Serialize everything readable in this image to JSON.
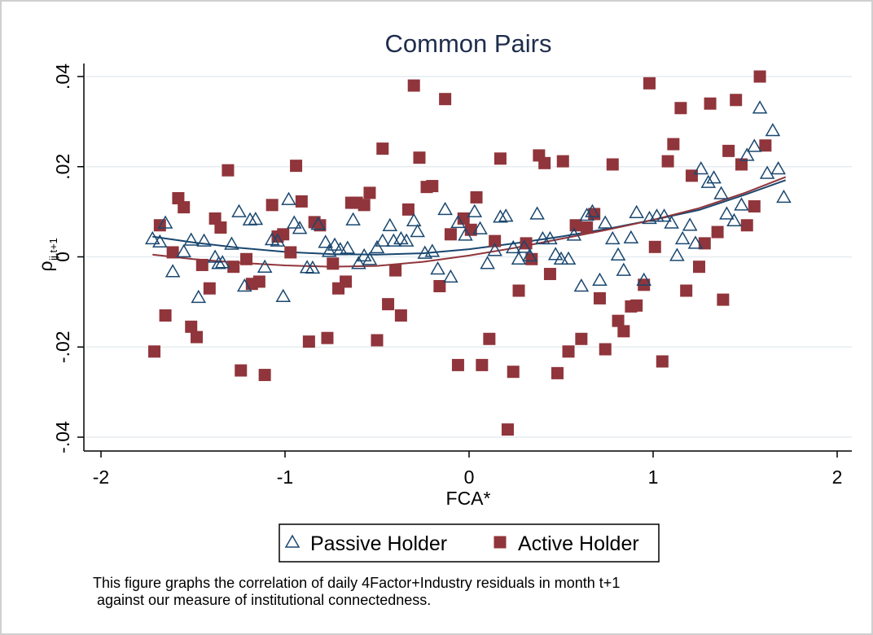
{
  "chart_data": {
    "type": "scatter",
    "title": "Common Pairs",
    "xlabel": "FCA*",
    "ylabel": "ρ",
    "ylabel_subscript": "ij,t+1",
    "xlim": [
      -2,
      2
    ],
    "ylim": [
      -0.04,
      0.04
    ],
    "x_ticks": [
      -2,
      -1,
      0,
      1,
      2
    ],
    "x_tick_labels": [
      "-2",
      "-1",
      "0",
      "1",
      "2"
    ],
    "y_ticks": [
      -0.04,
      -0.02,
      0,
      0.02,
      0.04
    ],
    "y_tick_labels": [
      "-.04",
      "-.02",
      "0",
      ".02",
      ".04"
    ],
    "grid": "horizontal",
    "legend_position": "bottom",
    "colors": {
      "passive": "#1a476f",
      "active": "#90353b",
      "grid": "#e5ecef"
    },
    "series": [
      {
        "name": "Passive Holder",
        "marker": "hollow-triangle",
        "points": [
          [
            -1.72,
            0.004
          ],
          [
            -1.68,
            0.0033
          ],
          [
            -1.65,
            0.0075
          ],
          [
            -1.61,
            -0.0033
          ],
          [
            -1.55,
            0.0011
          ],
          [
            -1.51,
            0.0037
          ],
          [
            -1.47,
            -0.009
          ],
          [
            -1.44,
            0.0035
          ],
          [
            -1.38,
            -0.0001
          ],
          [
            -1.36,
            -0.0015
          ],
          [
            -1.34,
            -0.0013
          ],
          [
            -1.29,
            0.0028
          ],
          [
            -1.25,
            0.01
          ],
          [
            -1.22,
            -0.0065
          ],
          [
            -1.19,
            0.0082
          ],
          [
            -1.16,
            0.0083
          ],
          [
            -1.11,
            -0.0023
          ],
          [
            -1.07,
            0.0038
          ],
          [
            -1.04,
            0.0035
          ],
          [
            -1.01,
            -0.0088
          ],
          [
            -0.98,
            0.0127
          ],
          [
            -0.95,
            0.0075
          ],
          [
            -0.92,
            0.0063
          ],
          [
            -0.88,
            -0.0024
          ],
          [
            -0.85,
            -0.0025
          ],
          [
            -0.82,
            0.0072
          ],
          [
            -0.78,
            0.0032
          ],
          [
            -0.76,
            0.0012
          ],
          [
            -0.73,
            0.0026
          ],
          [
            -0.7,
            0.0016
          ],
          [
            -0.66,
            0.0019
          ],
          [
            -0.63,
            0.0082
          ],
          [
            -0.6,
            -0.0015
          ],
          [
            -0.57,
            0.0002
          ],
          [
            -0.54,
            -0.0006
          ],
          [
            -0.5,
            0.002
          ],
          [
            -0.47,
            0.0035
          ],
          [
            -0.43,
            0.0069
          ],
          [
            -0.41,
            0.0035
          ],
          [
            -0.37,
            0.004
          ],
          [
            -0.34,
            0.0035
          ],
          [
            -0.3,
            0.008
          ],
          [
            -0.28,
            0.0056
          ],
          [
            -0.24,
            0.0008
          ],
          [
            -0.2,
            0.0012
          ],
          [
            -0.17,
            -0.0027
          ],
          [
            -0.13,
            0.0105
          ],
          [
            -0.1,
            -0.0045
          ],
          [
            -0.06,
            0.0076
          ],
          [
            -0.02,
            0.0048
          ],
          [
            0.03,
            0.01
          ],
          [
            0.06,
            0.0062
          ],
          [
            0.1,
            -0.0015
          ],
          [
            0.14,
            0.0014
          ],
          [
            0.17,
            0.0088
          ],
          [
            0.2,
            0.009
          ],
          [
            0.24,
            0.002
          ],
          [
            0.27,
            -0.0005
          ],
          [
            0.3,
            0.0021
          ],
          [
            0.33,
            0.0002
          ],
          [
            0.37,
            0.0095
          ],
          [
            0.4,
            0.004
          ],
          [
            0.44,
            0.004
          ],
          [
            0.47,
            0.0005
          ],
          [
            0.5,
            -0.0005
          ],
          [
            0.54,
            -0.0005
          ],
          [
            0.57,
            0.0048
          ],
          [
            0.61,
            -0.0065
          ],
          [
            0.64,
            0.0092
          ],
          [
            0.67,
            0.01
          ],
          [
            0.71,
            -0.0052
          ],
          [
            0.74,
            0.0075
          ],
          [
            0.78,
            0.004
          ],
          [
            0.81,
            0.0004
          ],
          [
            0.84,
            -0.003
          ],
          [
            0.88,
            0.0042
          ],
          [
            0.91,
            0.0098
          ],
          [
            0.95,
            -0.0052
          ],
          [
            0.98,
            0.0085
          ],
          [
            1.02,
            0.009
          ],
          [
            1.06,
            0.009
          ],
          [
            1.1,
            0.0075
          ],
          [
            1.13,
            0.0003
          ],
          [
            1.16,
            0.004
          ],
          [
            1.2,
            0.007
          ],
          [
            1.23,
            0.003
          ],
          [
            1.26,
            0.0195
          ],
          [
            1.3,
            0.0165
          ],
          [
            1.33,
            0.0175
          ],
          [
            1.37,
            0.014
          ],
          [
            1.4,
            0.0095
          ],
          [
            1.44,
            0.008
          ],
          [
            1.48,
            0.0115
          ],
          [
            1.51,
            0.0225
          ],
          [
            1.55,
            0.0245
          ],
          [
            1.58,
            0.033
          ],
          [
            1.62,
            0.0185
          ],
          [
            1.65,
            0.028
          ],
          [
            1.68,
            0.0195
          ],
          [
            1.71,
            0.0132
          ]
        ],
        "fit": [
          [
            -1.72,
            0.0045
          ],
          [
            -1.5,
            0.0032
          ],
          [
            -1.25,
            0.002
          ],
          [
            -1.0,
            0.0011
          ],
          [
            -0.75,
            0.0006
          ],
          [
            -0.5,
            0.0005
          ],
          [
            -0.25,
            0.0008
          ],
          [
            0.0,
            0.0017
          ],
          [
            0.25,
            0.003
          ],
          [
            0.5,
            0.0045
          ],
          [
            0.75,
            0.0062
          ],
          [
            1.0,
            0.0082
          ],
          [
            1.25,
            0.0104
          ],
          [
            1.5,
            0.0138
          ],
          [
            1.72,
            0.017
          ]
        ]
      },
      {
        "name": "Active Holder",
        "marker": "filled-square",
        "points": [
          [
            -1.71,
            -0.021
          ],
          [
            -1.68,
            0.007
          ],
          [
            -1.65,
            -0.013
          ],
          [
            -1.61,
            0.001
          ],
          [
            -1.58,
            0.013
          ],
          [
            -1.55,
            0.011
          ],
          [
            -1.51,
            -0.0155
          ],
          [
            -1.48,
            -0.0178
          ],
          [
            -1.45,
            -0.0018
          ],
          [
            -1.41,
            -0.007
          ],
          [
            -1.38,
            0.0085
          ],
          [
            -1.35,
            0.0065
          ],
          [
            -1.31,
            0.0192
          ],
          [
            -1.28,
            -0.0022
          ],
          [
            -1.24,
            -0.0252
          ],
          [
            -1.21,
            -0.0005
          ],
          [
            -1.18,
            -0.006
          ],
          [
            -1.14,
            -0.0055
          ],
          [
            -1.11,
            -0.0262
          ],
          [
            -1.07,
            0.0115
          ],
          [
            -1.04,
            0.0045
          ],
          [
            -1.01,
            0.005
          ],
          [
            -0.97,
            0.001
          ],
          [
            -0.94,
            0.0202
          ],
          [
            -0.91,
            0.0123
          ],
          [
            -0.87,
            -0.0188
          ],
          [
            -0.84,
            0.0077
          ],
          [
            -0.81,
            0.007
          ],
          [
            -0.77,
            -0.018
          ],
          [
            -0.74,
            -0.0015
          ],
          [
            -0.71,
            -0.007
          ],
          [
            -0.67,
            -0.0055
          ],
          [
            -0.64,
            0.012
          ],
          [
            -0.61,
            0.012
          ],
          [
            -0.57,
            0.0115
          ],
          [
            -0.54,
            0.0142
          ],
          [
            -0.5,
            -0.0185
          ],
          [
            -0.47,
            0.024
          ],
          [
            -0.44,
            -0.0105
          ],
          [
            -0.4,
            -0.003
          ],
          [
            -0.37,
            -0.013
          ],
          [
            -0.33,
            0.0105
          ],
          [
            -0.3,
            0.038
          ],
          [
            -0.27,
            0.022
          ],
          [
            -0.23,
            0.0155
          ],
          [
            -0.2,
            0.0157
          ],
          [
            -0.16,
            -0.0065
          ],
          [
            -0.13,
            0.035
          ],
          [
            -0.1,
            0.005
          ],
          [
            -0.06,
            -0.024
          ],
          [
            -0.03,
            0.0085
          ],
          [
            0.01,
            0.006
          ],
          [
            0.04,
            0.0132
          ],
          [
            0.07,
            -0.024
          ],
          [
            0.11,
            -0.0182
          ],
          [
            0.14,
            0.0035
          ],
          [
            0.17,
            0.0218
          ],
          [
            0.21,
            -0.0383
          ],
          [
            0.24,
            -0.0255
          ],
          [
            0.27,
            -0.0075
          ],
          [
            0.31,
            0.003
          ],
          [
            0.34,
            -0.0005
          ],
          [
            0.38,
            0.0225
          ],
          [
            0.41,
            0.0208
          ],
          [
            0.44,
            -0.0038
          ],
          [
            0.48,
            -0.0258
          ],
          [
            0.51,
            0.0212
          ],
          [
            0.54,
            -0.021
          ],
          [
            0.58,
            0.007
          ],
          [
            0.61,
            -0.0182
          ],
          [
            0.64,
            0.0065
          ],
          [
            0.68,
            0.0095
          ],
          [
            0.71,
            -0.0092
          ],
          [
            0.74,
            -0.0205
          ],
          [
            0.78,
            0.0205
          ],
          [
            0.81,
            -0.0142
          ],
          [
            0.84,
            -0.0165
          ],
          [
            0.88,
            -0.011
          ],
          [
            0.91,
            -0.0108
          ],
          [
            0.95,
            -0.0062
          ],
          [
            0.98,
            0.0385
          ],
          [
            1.01,
            0.0022
          ],
          [
            1.05,
            -0.0232
          ],
          [
            1.08,
            0.0212
          ],
          [
            1.11,
            0.025
          ],
          [
            1.15,
            0.033
          ],
          [
            1.18,
            -0.0075
          ],
          [
            1.21,
            0.018
          ],
          [
            1.25,
            -0.0022
          ],
          [
            1.28,
            0.003
          ],
          [
            1.31,
            0.034
          ],
          [
            1.35,
            0.0055
          ],
          [
            1.38,
            -0.0095
          ],
          [
            1.41,
            0.0235
          ],
          [
            1.45,
            0.0348
          ],
          [
            1.48,
            0.0205
          ],
          [
            1.51,
            0.007
          ],
          [
            1.55,
            0.0112
          ],
          [
            1.58,
            0.04
          ],
          [
            1.61,
            0.0247
          ]
        ],
        "fit": [
          [
            -1.72,
            0.0005
          ],
          [
            -1.5,
            -0.0005
          ],
          [
            -1.25,
            -0.0013
          ],
          [
            -1.0,
            -0.0019
          ],
          [
            -0.75,
            -0.0022
          ],
          [
            -0.5,
            -0.002
          ],
          [
            -0.25,
            -0.0011
          ],
          [
            0.0,
            0.0003
          ],
          [
            0.25,
            0.002
          ],
          [
            0.5,
            0.004
          ],
          [
            0.75,
            0.006
          ],
          [
            1.0,
            0.0082
          ],
          [
            1.25,
            0.0108
          ],
          [
            1.5,
            0.0142
          ],
          [
            1.72,
            0.0177
          ]
        ]
      }
    ],
    "caption": "This figure graphs the correlation of daily 4Factor+Industry residuals in month t+1\n against our measure of institutional connectedness."
  }
}
